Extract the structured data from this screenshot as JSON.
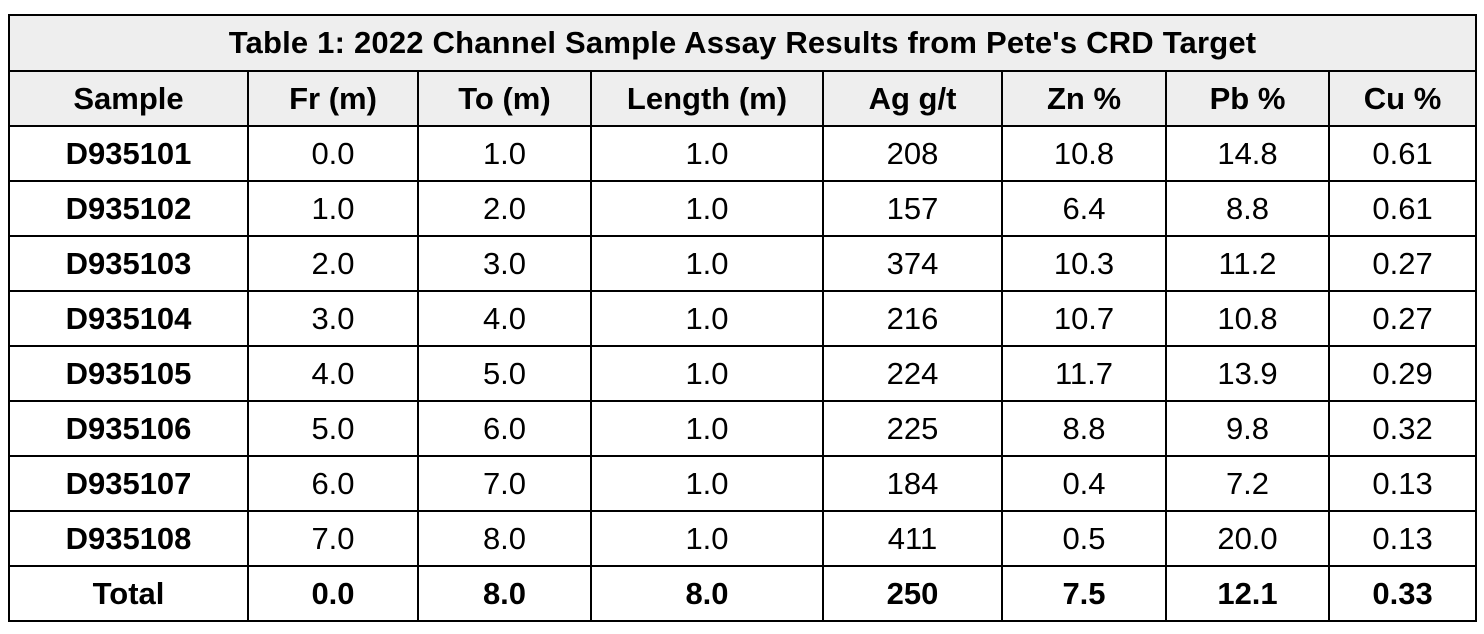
{
  "table": {
    "title": "Table 1: 2022 Channel Sample Assay Results from Pete's CRD Target",
    "headers": [
      "Sample",
      "Fr (m)",
      "To (m)",
      "Length (m)",
      "Ag g/t",
      "Zn %",
      "Pb %",
      "Cu %"
    ],
    "rows": [
      [
        "D935101",
        "0.0",
        "1.0",
        "1.0",
        "208",
        "10.8",
        "14.8",
        "0.61"
      ],
      [
        "D935102",
        "1.0",
        "2.0",
        "1.0",
        "157",
        "6.4",
        "8.8",
        "0.61"
      ],
      [
        "D935103",
        "2.0",
        "3.0",
        "1.0",
        "374",
        "10.3",
        "11.2",
        "0.27"
      ],
      [
        "D935104",
        "3.0",
        "4.0",
        "1.0",
        "216",
        "10.7",
        "10.8",
        "0.27"
      ],
      [
        "D935105",
        "4.0",
        "5.0",
        "1.0",
        "224",
        "11.7",
        "13.9",
        "0.29"
      ],
      [
        "D935106",
        "5.0",
        "6.0",
        "1.0",
        "225",
        "8.8",
        "9.8",
        "0.32"
      ],
      [
        "D935107",
        "6.0",
        "7.0",
        "1.0",
        "184",
        "0.4",
        "7.2",
        "0.13"
      ],
      [
        "D935108",
        "7.0",
        "8.0",
        "1.0",
        "411",
        "0.5",
        "20.0",
        "0.13"
      ]
    ],
    "total": [
      "Total",
      "0.0",
      "8.0",
      "8.0",
      "250",
      "7.5",
      "12.1",
      "0.33"
    ]
  },
  "colors": {
    "header_background": "#eeeeee",
    "border": "#000000"
  }
}
